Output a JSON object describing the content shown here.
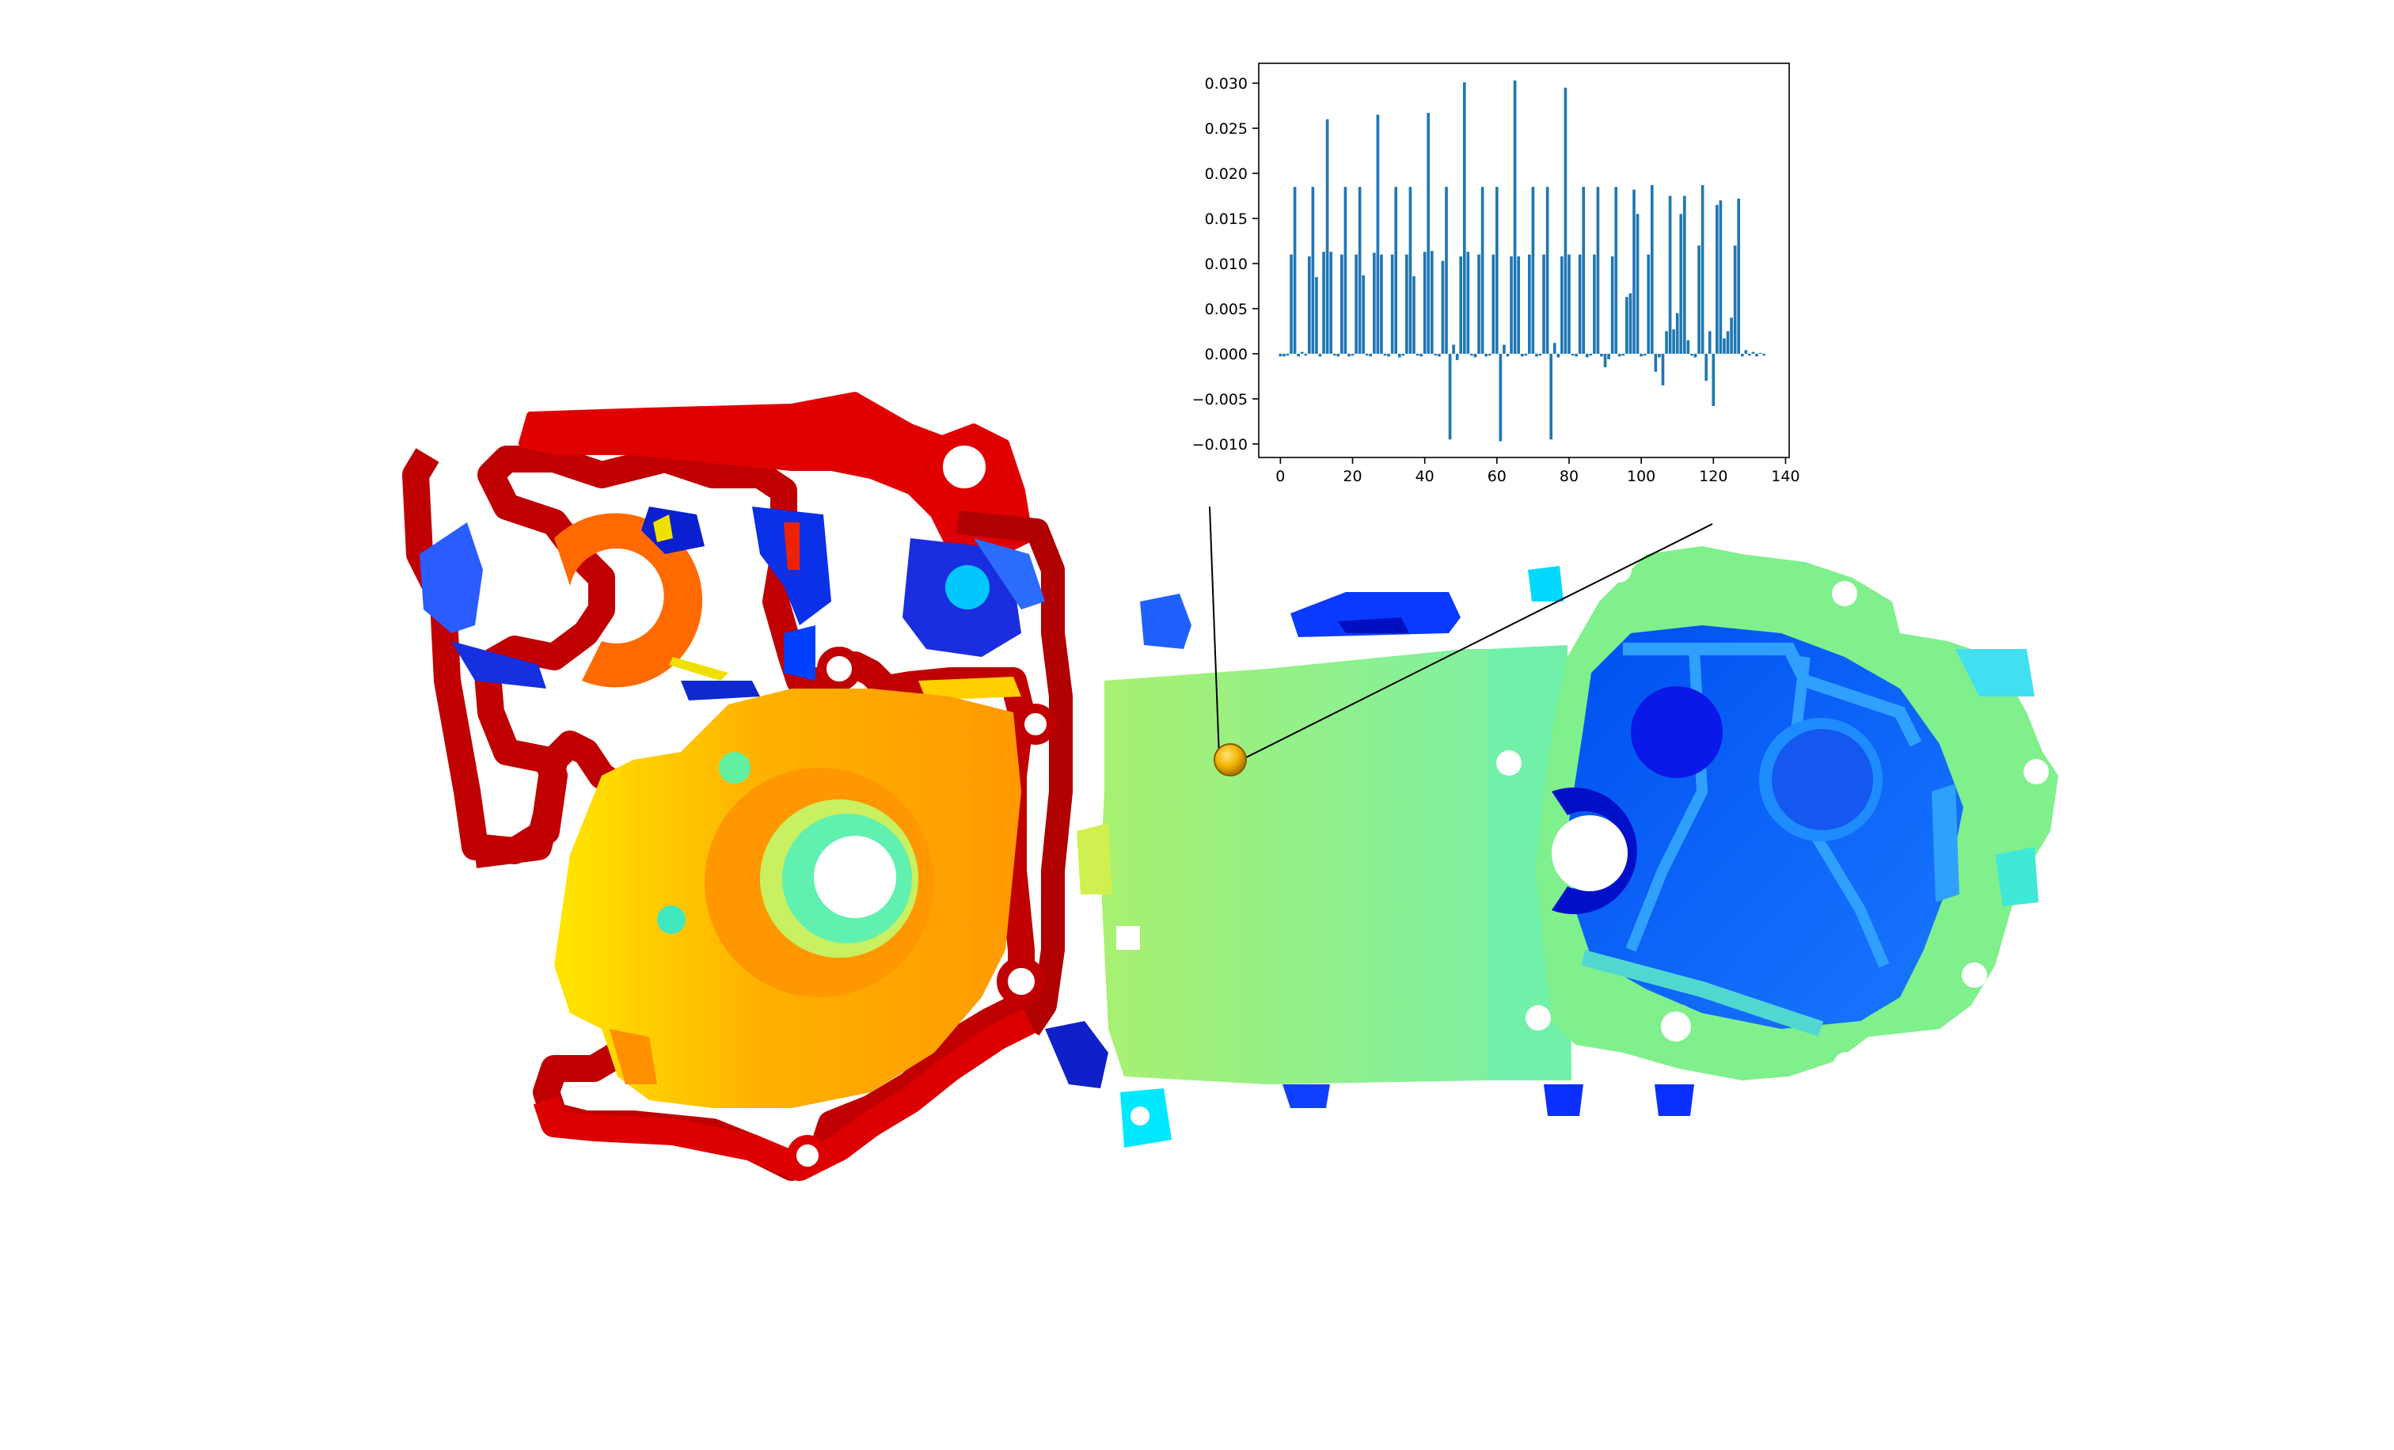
{
  "scene": {
    "description_colormap": "jet",
    "marker_color": "#f2b400",
    "leader_line_color": "#000000"
  },
  "chart_data": {
    "type": "bar",
    "title": "",
    "xlabel": "",
    "ylabel": "",
    "xlim": [
      -6,
      141
    ],
    "ylim": [
      -0.0115,
      0.0322
    ],
    "x_ticks": [
      0,
      20,
      40,
      60,
      80,
      100,
      120,
      140
    ],
    "x_tick_labels": [
      "0",
      "20",
      "40",
      "60",
      "80",
      "100",
      "120",
      "140"
    ],
    "y_ticks": [
      -0.01,
      -0.005,
      0.0,
      0.005,
      0.01,
      0.015,
      0.02,
      0.025,
      0.03
    ],
    "y_tick_labels": [
      "−0.010",
      "−0.005",
      "0.000",
      "0.005",
      "0.010",
      "0.015",
      "0.020",
      "0.025",
      "0.030"
    ],
    "grid": false,
    "bar_color": "#1f77b4",
    "x": [
      0,
      1,
      2,
      3,
      4,
      5,
      6,
      7,
      8,
      9,
      10,
      11,
      12,
      13,
      14,
      15,
      16,
      17,
      18,
      19,
      20,
      21,
      22,
      23,
      24,
      25,
      26,
      27,
      28,
      29,
      30,
      31,
      32,
      33,
      34,
      35,
      36,
      37,
      38,
      39,
      40,
      41,
      42,
      43,
      44,
      45,
      46,
      47,
      48,
      49,
      50,
      51,
      52,
      53,
      54,
      55,
      56,
      57,
      58,
      59,
      60,
      61,
      62,
      63,
      64,
      65,
      66,
      67,
      68,
      69,
      70,
      71,
      72,
      73,
      74,
      75,
      76,
      77,
      78,
      79,
      80,
      81,
      82,
      83,
      84,
      85,
      86,
      87,
      88,
      89,
      90,
      91,
      92,
      93,
      94,
      95,
      96,
      97,
      98,
      99,
      100,
      101,
      102,
      103,
      104,
      105,
      106,
      107,
      108,
      109,
      110,
      111,
      112,
      113,
      114,
      115,
      116,
      117,
      118,
      119,
      120,
      121,
      122,
      123,
      124,
      125,
      126,
      127,
      128,
      129,
      130,
      131,
      132,
      133,
      134
    ],
    "values": [
      -0.0003,
      -0.0003,
      -0.0002,
      0.011,
      0.0185,
      -0.0003,
      0.0002,
      -0.0002,
      0.0108,
      0.0185,
      0.0085,
      -0.0003,
      0.0113,
      0.026,
      0.0113,
      -0.0002,
      -0.0003,
      0.011,
      0.0185,
      -0.0003,
      -0.0002,
      0.011,
      0.0185,
      0.0087,
      -0.0002,
      -0.0003,
      0.0112,
      0.0265,
      0.011,
      -0.0002,
      -0.0003,
      0.011,
      0.0185,
      -0.0004,
      -0.0002,
      0.011,
      0.0185,
      0.0086,
      -0.0002,
      -0.0003,
      0.0113,
      0.0267,
      0.0114,
      -0.0002,
      -0.0003,
      0.0103,
      0.0185,
      -0.0095,
      0.001,
      -0.0007,
      0.0108,
      0.0301,
      0.0113,
      -0.0002,
      -0.0004,
      0.011,
      0.0185,
      -0.0003,
      -0.0002,
      0.011,
      0.0185,
      -0.0097,
      0.001,
      -0.0003,
      0.0108,
      0.0303,
      0.0108,
      -0.0003,
      -0.0002,
      0.011,
      0.0185,
      -0.0003,
      -0.0002,
      0.011,
      0.0185,
      -0.0095,
      0.0012,
      -0.0004,
      0.0108,
      0.0295,
      0.011,
      -0.0002,
      -0.0003,
      0.011,
      0.0185,
      -0.0004,
      -0.0002,
      0.011,
      0.0185,
      -0.0003,
      -0.0015,
      -0.0006,
      0.0108,
      0.0185,
      -0.0003,
      -0.0002,
      0.0063,
      0.0067,
      0.0182,
      0.0155,
      -0.0003,
      -0.0002,
      0.011,
      0.0187,
      -0.002,
      -0.0004,
      -0.0035,
      0.0025,
      0.0175,
      0.0027,
      0.0045,
      0.0155,
      0.0175,
      0.0015,
      -0.0002,
      -0.0004,
      0.012,
      0.0187,
      -0.003,
      0.0025,
      -0.0058,
      0.0165,
      0.017,
      0.0017,
      0.0025,
      0.004,
      0.012,
      0.0172,
      -0.0003,
      0.0004,
      -0.0002,
      0.0002,
      -0.0003,
      0.0001,
      -0.0002
    ]
  }
}
